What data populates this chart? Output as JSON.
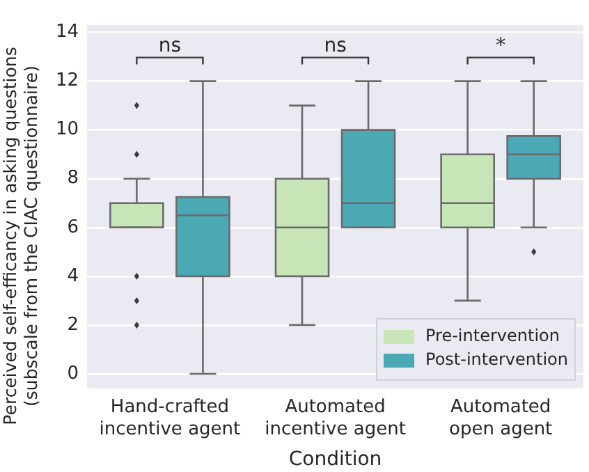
{
  "chart_data": {
    "type": "box",
    "xlabel": "Condition",
    "ylabel": "Perceived self-efficancy in asking questions\n(subscale from the CIAC questionnaire)",
    "categories": [
      "Hand-crafted\nincentive agent",
      "Automated\nincentive agent",
      "Automated\nopen agent"
    ],
    "series": [
      {
        "name": "Pre-intervention",
        "color": "#c8e5b7",
        "boxes": [
          {
            "low": 6,
            "q1": 6,
            "median": 6,
            "q3": 7,
            "high": 8,
            "outliers": [
              11,
              9,
              4,
              3,
              2
            ]
          },
          {
            "low": 2,
            "q1": 4,
            "median": 6,
            "q3": 8,
            "high": 11
          },
          {
            "low": 3,
            "q1": 6,
            "median": 7,
            "q3": 9,
            "high": 12
          }
        ]
      },
      {
        "name": "Post-intervention",
        "color": "#4aa9b5",
        "boxes": [
          {
            "low": 0,
            "q1": 4,
            "median": 6.5,
            "q3": 7.25,
            "high": 12
          },
          {
            "low": 6,
            "q1": 6,
            "median": 7,
            "q3": 10,
            "high": 12
          },
          {
            "low": 6,
            "q1": 8,
            "median": 9,
            "q3": 9.75,
            "high": 12,
            "outliers": [
              5
            ]
          }
        ]
      }
    ],
    "ylim": [
      -0.6,
      14.3
    ],
    "yticks": [
      0,
      2,
      4,
      6,
      8,
      10,
      12,
      14
    ],
    "grid": "y",
    "legend": "bottom right",
    "annotations": [
      "ns",
      "ns",
      "*"
    ]
  }
}
